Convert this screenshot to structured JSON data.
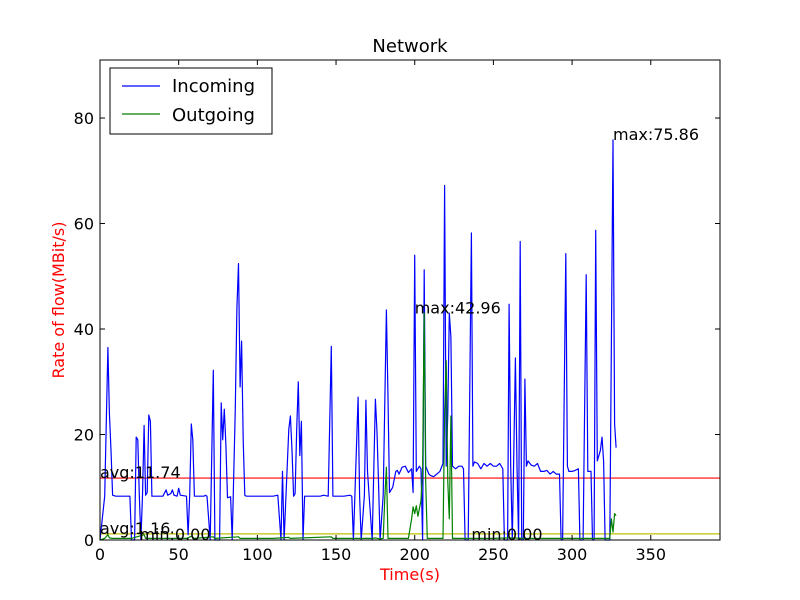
{
  "chart_data": {
    "type": "line",
    "title": "Network",
    "xlabel": "Time(s)",
    "ylabel": "Rate of flow(MBit/s)",
    "label_color": "#ff0000",
    "xlim": [
      0,
      394
    ],
    "ylim": [
      0,
      91
    ],
    "xticks": [
      0,
      50,
      100,
      150,
      200,
      250,
      300,
      350
    ],
    "yticks": [
      0,
      20,
      40,
      60,
      80
    ],
    "grid": false,
    "legend": {
      "placement": "top-left"
    },
    "series": [
      {
        "name": "Incoming",
        "color": "#0000ff",
        "points": [
          [
            0,
            0
          ],
          [
            3,
            8.3
          ],
          [
            5,
            36.5
          ],
          [
            6,
            24
          ],
          [
            7,
            17
          ],
          [
            8,
            8.5
          ],
          [
            10,
            8.3
          ],
          [
            15,
            8.3
          ],
          [
            19,
            8.3
          ],
          [
            20,
            0
          ],
          [
            22,
            0
          ],
          [
            23,
            19.5
          ],
          [
            24,
            19
          ],
          [
            25,
            8.5
          ],
          [
            26,
            0
          ],
          [
            27,
            8.5
          ],
          [
            28,
            21.7
          ],
          [
            29,
            8.5
          ],
          [
            30,
            9
          ],
          [
            31,
            23.7
          ],
          [
            32,
            22.5
          ],
          [
            33,
            8.3
          ],
          [
            40,
            8.3
          ],
          [
            42,
            9.5
          ],
          [
            43,
            8.5
          ],
          [
            45,
            8.8
          ],
          [
            46,
            9.5
          ],
          [
            47,
            8.5
          ],
          [
            49,
            8.3
          ],
          [
            50,
            9.8
          ],
          [
            51,
            8.5
          ],
          [
            55,
            8.3
          ],
          [
            56,
            1
          ],
          [
            57,
            8.5
          ],
          [
            58,
            22
          ],
          [
            59,
            19
          ],
          [
            60,
            8.3
          ],
          [
            66,
            8.3
          ],
          [
            67,
            8.5
          ],
          [
            68,
            8.3
          ],
          [
            70,
            0
          ],
          [
            72,
            32.2
          ],
          [
            73,
            0
          ],
          [
            76,
            0
          ],
          [
            77,
            26
          ],
          [
            78,
            19
          ],
          [
            79,
            24.8
          ],
          [
            80,
            18
          ],
          [
            81,
            8
          ],
          [
            83,
            8.2
          ],
          [
            84,
            0
          ],
          [
            86,
            25
          ],
          [
            87,
            44
          ],
          [
            88,
            52.4
          ],
          [
            89,
            29
          ],
          [
            90,
            37.7
          ],
          [
            91,
            19
          ],
          [
            92,
            8.5
          ],
          [
            93,
            8.3
          ],
          [
            100,
            8.3
          ],
          [
            110,
            8.3
          ],
          [
            113,
            8.5
          ],
          [
            115,
            0
          ],
          [
            116,
            13
          ],
          [
            117,
            0
          ],
          [
            120,
            21
          ],
          [
            121,
            23.5
          ],
          [
            122,
            17
          ],
          [
            123,
            8.3
          ],
          [
            124,
            8.8
          ],
          [
            125,
            21
          ],
          [
            126,
            30
          ],
          [
            127,
            16
          ],
          [
            128,
            22.5
          ],
          [
            129,
            0
          ],
          [
            130,
            8.3
          ],
          [
            140,
            8.3
          ],
          [
            142,
            8.5
          ],
          [
            145,
            8.3
          ],
          [
            147,
            36.7
          ],
          [
            148,
            8.3
          ],
          [
            150,
            8.3
          ],
          [
            155,
            8.3
          ],
          [
            159,
            8.5
          ],
          [
            160,
            8.3
          ],
          [
            161,
            0
          ],
          [
            162,
            8.5
          ],
          [
            164,
            27.1
          ],
          [
            165,
            8.3
          ],
          [
            166,
            0
          ],
          [
            168,
            8.5
          ],
          [
            169,
            26.5
          ],
          [
            170,
            13
          ],
          [
            171,
            8.5
          ],
          [
            173,
            0
          ],
          [
            175,
            26.7
          ],
          [
            176,
            20.5
          ],
          [
            177,
            11
          ],
          [
            178,
            0
          ],
          [
            180,
            8.5
          ],
          [
            182,
            43.6
          ],
          [
            183,
            27
          ],
          [
            184,
            9
          ],
          [
            186,
            10
          ],
          [
            188,
            13
          ],
          [
            189,
            13.2
          ],
          [
            190,
            12.5
          ],
          [
            192,
            13.8
          ],
          [
            194,
            14
          ],
          [
            196,
            12.8
          ],
          [
            198,
            13.5
          ],
          [
            199,
            9
          ],
          [
            200,
            54
          ],
          [
            201,
            13
          ],
          [
            203,
            14
          ],
          [
            204,
            13.5
          ],
          [
            205,
            0
          ],
          [
            206,
            51.2
          ],
          [
            207,
            14
          ],
          [
            209,
            12.5
          ],
          [
            210,
            12.2
          ],
          [
            212,
            12
          ],
          [
            214,
            12.5
          ],
          [
            216,
            13
          ],
          [
            218,
            14.5
          ],
          [
            219,
            67.2
          ],
          [
            220,
            14
          ],
          [
            221,
            24
          ],
          [
            222,
            43
          ],
          [
            223,
            38.5
          ],
          [
            224,
            14
          ],
          [
            226,
            13.5
          ],
          [
            228,
            14
          ],
          [
            230,
            14
          ],
          [
            231,
            13.5
          ],
          [
            232,
            0
          ],
          [
            234,
            0
          ],
          [
            236,
            58.2
          ],
          [
            237,
            14
          ],
          [
            238,
            14.8
          ],
          [
            240,
            14.5
          ],
          [
            242,
            13.5
          ],
          [
            244,
            14.5
          ],
          [
            246,
            14
          ],
          [
            248,
            14.5
          ],
          [
            250,
            14
          ],
          [
            252,
            14
          ],
          [
            254,
            14.5
          ],
          [
            256,
            13.5
          ],
          [
            257,
            0
          ],
          [
            259,
            0
          ],
          [
            260,
            44.7
          ],
          [
            261,
            14
          ],
          [
            262,
            0
          ],
          [
            264,
            34.5
          ],
          [
            265,
            14
          ],
          [
            266,
            0
          ],
          [
            267,
            56.6
          ],
          [
            268,
            0
          ],
          [
            269,
            0
          ],
          [
            270,
            30.5
          ],
          [
            271,
            14
          ],
          [
            272,
            15
          ],
          [
            274,
            14.2
          ],
          [
            276,
            14
          ],
          [
            278,
            14.5
          ],
          [
            280,
            13
          ],
          [
            282,
            13
          ],
          [
            284,
            13.2
          ],
          [
            286,
            12.5
          ],
          [
            288,
            13
          ],
          [
            290,
            12.5
          ],
          [
            292,
            12.5
          ],
          [
            293,
            0
          ],
          [
            294,
            0
          ],
          [
            296,
            54.3
          ],
          [
            297,
            14
          ],
          [
            298,
            13
          ],
          [
            300,
            13
          ],
          [
            302,
            13.2
          ],
          [
            304,
            13.5
          ],
          [
            305,
            0
          ],
          [
            307,
            0
          ],
          [
            309,
            50.3
          ],
          [
            310,
            13
          ],
          [
            312,
            13
          ],
          [
            313,
            0
          ],
          [
            314,
            0
          ],
          [
            315,
            58.7
          ],
          [
            316,
            15
          ],
          [
            318,
            17
          ],
          [
            319,
            19.5
          ],
          [
            320,
            15
          ],
          [
            321,
            0
          ],
          [
            324,
            0
          ],
          [
            326,
            75.86
          ],
          [
            327,
            22
          ],
          [
            328,
            17.5
          ]
        ]
      },
      {
        "name": "Outgoing",
        "color": "#008000",
        "points": [
          [
            0,
            0
          ],
          [
            3,
            0.3
          ],
          [
            5,
            1
          ],
          [
            6,
            0.4
          ],
          [
            8,
            0.3
          ],
          [
            20,
            0.3
          ],
          [
            28,
            1
          ],
          [
            29,
            0.3
          ],
          [
            40,
            0.3
          ],
          [
            55,
            0.3
          ],
          [
            58,
            0.7
          ],
          [
            60,
            0.3
          ],
          [
            72,
            0.6
          ],
          [
            73,
            0.3
          ],
          [
            88,
            0.6
          ],
          [
            89,
            0.3
          ],
          [
            100,
            0.3
          ],
          [
            110,
            0.3
          ],
          [
            120,
            0.5
          ],
          [
            121,
            0.3
          ],
          [
            147,
            0.6
          ],
          [
            148,
            0.3
          ],
          [
            160,
            0.3
          ],
          [
            173,
            0.3
          ],
          [
            175,
            0.4
          ],
          [
            178,
            0.2
          ],
          [
            180,
            0.3
          ],
          [
            181,
            8
          ],
          [
            182,
            13.8
          ],
          [
            183,
            0.3
          ],
          [
            196,
            0.3
          ],
          [
            198,
            4
          ],
          [
            199,
            6.3
          ],
          [
            200,
            5
          ],
          [
            201,
            6.5
          ],
          [
            202,
            4.5
          ],
          [
            204,
            7.5
          ],
          [
            205,
            13.5
          ],
          [
            206,
            43
          ],
          [
            207,
            11
          ],
          [
            208,
            0.3
          ],
          [
            218,
            0.3
          ],
          [
            219,
            24
          ],
          [
            220,
            34
          ],
          [
            221,
            11
          ],
          [
            222,
            4
          ],
          [
            223,
            23.5
          ],
          [
            224,
            0.3
          ],
          [
            230,
            0.3
          ],
          [
            240,
            0.3
          ],
          [
            250,
            0.3
          ],
          [
            260,
            0.4
          ],
          [
            270,
            0.3
          ],
          [
            280,
            0.3
          ],
          [
            290,
            0.3
          ],
          [
            300,
            0.3
          ],
          [
            310,
            0.3
          ],
          [
            320,
            0.3
          ],
          [
            324,
            0.3
          ],
          [
            325,
            4
          ],
          [
            326,
            1.5
          ],
          [
            327,
            5
          ],
          [
            328,
            4.6
          ]
        ]
      }
    ],
    "reference_lines": [
      {
        "y": 11.74,
        "color": "#ff0000"
      },
      {
        "y": 1.16,
        "color": "#bfbf00"
      }
    ],
    "annotations": [
      {
        "text": "avg:11.74",
        "x": 0,
        "y": 11.74
      },
      {
        "text": "avg:1.16",
        "x": 0,
        "y": 1.16
      },
      {
        "text": "min:0.00",
        "x": 25,
        "y": 0
      },
      {
        "text": "min:0.00",
        "x": 236,
        "y": 0
      },
      {
        "text": "max:42.96",
        "x": 200,
        "y": 42.96
      },
      {
        "text": "max:75.86",
        "x": 326,
        "y": 75.86
      }
    ]
  }
}
